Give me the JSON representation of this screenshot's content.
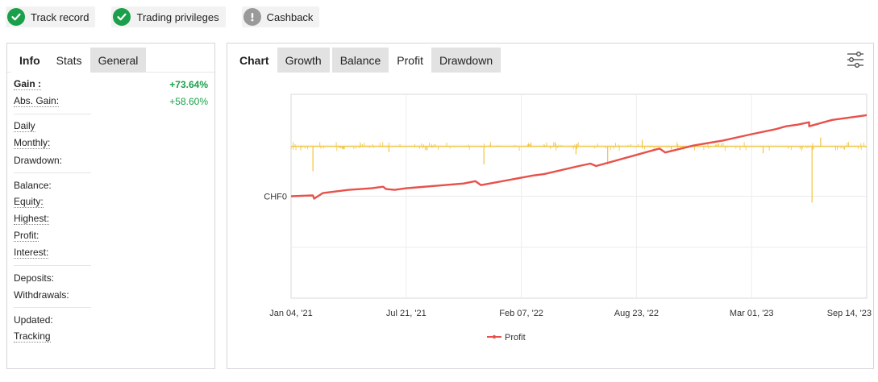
{
  "badges": [
    {
      "label": "Track record",
      "icon": "check-circle-icon",
      "status": "ok"
    },
    {
      "label": "Trading privileges",
      "icon": "check-circle-icon",
      "status": "ok"
    },
    {
      "label": "Cashback",
      "icon": "exclamation-circle-icon",
      "status": "inactive"
    }
  ],
  "left_tabs": [
    {
      "label": "Info"
    },
    {
      "label": "Stats"
    },
    {
      "label": "General"
    }
  ],
  "stats": {
    "gain": {
      "label": "Gain :",
      "value": "+73.64%"
    },
    "abs_gain": {
      "label": "Abs. Gain:",
      "value": "+58.60%"
    },
    "daily": {
      "label": "Daily"
    },
    "monthly": {
      "label": "Monthly:"
    },
    "drawdown": {
      "label": "Drawdown:"
    },
    "balance": {
      "label": "Balance:"
    },
    "equity": {
      "label": "Equity:"
    },
    "highest": {
      "label": "Highest:"
    },
    "profit": {
      "label": "Profit:"
    },
    "interest": {
      "label": "Interest:"
    },
    "deposits": {
      "label": "Deposits:"
    },
    "withdrawals": {
      "label": "Withdrawals:"
    },
    "updated": {
      "label": "Updated:"
    },
    "tracking": {
      "label": "Tracking"
    }
  },
  "chart_tabs": [
    {
      "label": "Chart"
    },
    {
      "label": "Growth"
    },
    {
      "label": "Balance"
    },
    {
      "label": "Profit"
    },
    {
      "label": "Drawdown"
    }
  ],
  "colors": {
    "profit_line": "#e8514a",
    "daily_bars": "#f0c43c",
    "positive": "#1aa04a"
  },
  "chart_data": {
    "type": "line",
    "x_tick_labels": [
      "Jan 04, '21",
      "Jul 21, '21",
      "Feb 07, '22",
      "Aug 23, '22",
      "Mar 01, '23",
      "Sep 14, '23"
    ],
    "y_tick_labels": [
      "CHF0"
    ],
    "y_range": [
      -1.0,
      1.0
    ],
    "legend": {
      "entries": [
        "Profit"
      ],
      "placement": "bottom"
    },
    "grid": true,
    "series": [
      {
        "name": "Profit",
        "x": [
          0,
          0.038,
          0.04,
          0.055,
          0.1,
          0.14,
          0.16,
          0.165,
          0.18,
          0.2,
          0.3,
          0.32,
          0.33,
          0.42,
          0.44,
          0.5,
          0.52,
          0.53,
          0.6,
          0.62,
          0.64,
          0.65,
          0.7,
          0.75,
          0.8,
          0.84,
          0.86,
          0.88,
          0.9,
          0.9,
          0.92,
          0.94,
          1.0
        ],
        "y": [
          0.0,
          0.01,
          -0.03,
          0.04,
          0.08,
          0.1,
          0.12,
          0.09,
          0.08,
          0.1,
          0.16,
          0.19,
          0.14,
          0.26,
          0.28,
          0.38,
          0.41,
          0.38,
          0.52,
          0.56,
          0.6,
          0.55,
          0.64,
          0.7,
          0.78,
          0.84,
          0.88,
          0.9,
          0.93,
          0.88,
          0.92,
          0.96,
          1.02
        ]
      },
      {
        "name": "Daily",
        "baseline": 0.5,
        "spikes": [
          {
            "x": 0.038,
            "y": 0.28
          },
          {
            "x": 0.17,
            "y": 0.45
          },
          {
            "x": 0.335,
            "y": 0.34
          },
          {
            "x": 0.495,
            "y": 0.43
          },
          {
            "x": 0.55,
            "y": 0.34
          },
          {
            "x": 0.61,
            "y": 0.56
          },
          {
            "x": 0.82,
            "y": 0.44
          },
          {
            "x": 0.905,
            "y": 0.0
          },
          {
            "x": 0.92,
            "y": 0.58
          }
        ]
      }
    ]
  }
}
